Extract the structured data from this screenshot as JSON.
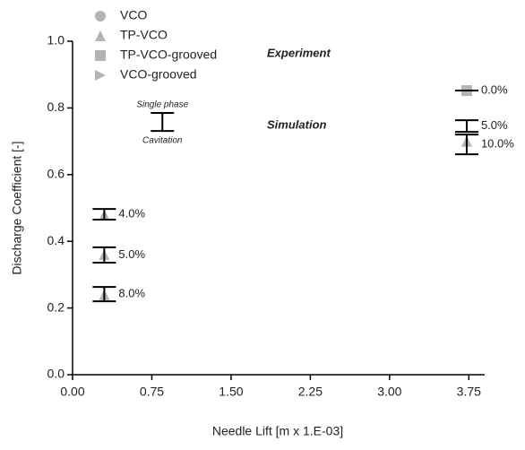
{
  "chart_data": {
    "type": "scatter",
    "xlabel": "Needle Lift [m x 1.E-03]",
    "ylabel": "Discharge Coefficient [-]",
    "xlim": [
      0,
      3.9
    ],
    "ylim": [
      0,
      1
    ],
    "xticks": [
      {
        "value": 0,
        "label": "0.00"
      },
      {
        "value": 0.75,
        "label": "0.75"
      },
      {
        "value": 1.5,
        "label": "1.50"
      },
      {
        "value": 2.25,
        "label": "2.25"
      },
      {
        "value": 3,
        "label": "3.00"
      },
      {
        "value": 3.75,
        "label": "3.75"
      }
    ],
    "yticks": [
      {
        "value": 0,
        "label": "0.0"
      },
      {
        "value": 0.2,
        "label": "0.2"
      },
      {
        "value": 0.4,
        "label": "0.4"
      },
      {
        "value": 0.6,
        "label": "0.6"
      },
      {
        "value": 0.8,
        "label": "0.8"
      },
      {
        "value": 1,
        "label": "1.0"
      }
    ],
    "experiment_label": "Experiment",
    "simulation_label": "Simulation",
    "series": [
      {
        "name": "VCO",
        "marker": "circle",
        "color": "#b4b4b4",
        "x": [],
        "values": []
      },
      {
        "name": "TP-VCO",
        "marker": "triangle",
        "color": "#b4b4b4",
        "x": [
          0.3,
          0.3,
          0.3,
          3.73
        ],
        "values": [
          0.48,
          0.36,
          0.24,
          0.7
        ]
      },
      {
        "name": "TP-VCO-grooved",
        "marker": "square",
        "color": "#b4b4b4",
        "x": [
          3.73
        ],
        "values": [
          0.852
        ]
      },
      {
        "name": "VCO-grooved",
        "marker": "right-triangle",
        "color": "#b4b4b4",
        "x": [],
        "values": []
      }
    ],
    "ranges": [
      {
        "label": "4.0%",
        "x": 0.3,
        "low": 0.465,
        "high": 0.497
      },
      {
        "label": "5.0%",
        "x": 0.3,
        "low": 0.336,
        "high": 0.382
      },
      {
        "label": "8.0%",
        "x": 0.3,
        "low": 0.22,
        "high": 0.263
      },
      {
        "label": "0.0%",
        "x": 3.73,
        "low": 0.852,
        "high": 0.852
      },
      {
        "label": "5.0%",
        "x": 3.73,
        "low": 0.728,
        "high": 0.763
      },
      {
        "label": "10.0%",
        "x": 3.73,
        "low": 0.661,
        "high": 0.72
      }
    ],
    "range_key": {
      "x": 0.85,
      "low": 0.731,
      "high": 0.785,
      "high_label": "Single phase",
      "low_label": "Cavitation"
    }
  }
}
